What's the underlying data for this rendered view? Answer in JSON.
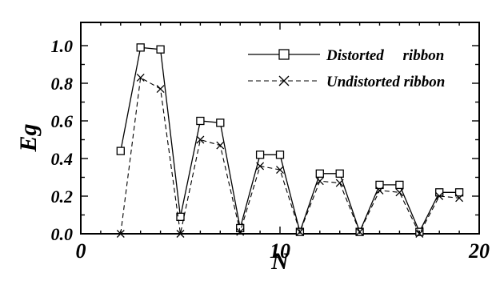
{
  "chart_data": {
    "type": "line",
    "xlabel": "N",
    "ylabel": "Eg",
    "xlim": [
      0,
      20
    ],
    "ylim": [
      0.0,
      1.1
    ],
    "x_ticks": [
      0,
      10,
      20
    ],
    "y_ticks": [
      0.0,
      0.2,
      0.4,
      0.6,
      0.8,
      1.0
    ],
    "x_tick_labels": [
      "0",
      "10",
      "20"
    ],
    "y_tick_labels": [
      "0.0",
      "0.2",
      "0.4",
      "0.6",
      "0.8",
      "1.0"
    ],
    "grid": false,
    "legend_position": "top-right",
    "series": [
      {
        "name": "Distorted     ribbon",
        "line_style": "solid",
        "marker": "square",
        "color": "#000000",
        "x": [
          2,
          3,
          4,
          5,
          6,
          7,
          8,
          9,
          10,
          11,
          12,
          13,
          14,
          15,
          16,
          17,
          18,
          19
        ],
        "y": [
          0.44,
          0.99,
          0.98,
          0.09,
          0.6,
          0.59,
          0.03,
          0.42,
          0.42,
          0.01,
          0.32,
          0.32,
          0.01,
          0.26,
          0.26,
          0.01,
          0.22,
          0.22
        ]
      },
      {
        "name": "Undistorted ribbon",
        "line_style": "dashed",
        "marker": "x",
        "color": "#000000",
        "x": [
          2,
          3,
          4,
          5,
          6,
          7,
          8,
          9,
          10,
          11,
          12,
          13,
          14,
          15,
          16,
          17,
          18,
          19
        ],
        "y": [
          0.0,
          0.83,
          0.77,
          0.0,
          0.5,
          0.47,
          0.01,
          0.36,
          0.34,
          0.01,
          0.28,
          0.27,
          0.01,
          0.23,
          0.22,
          0.0,
          0.2,
          0.19
        ]
      }
    ]
  }
}
